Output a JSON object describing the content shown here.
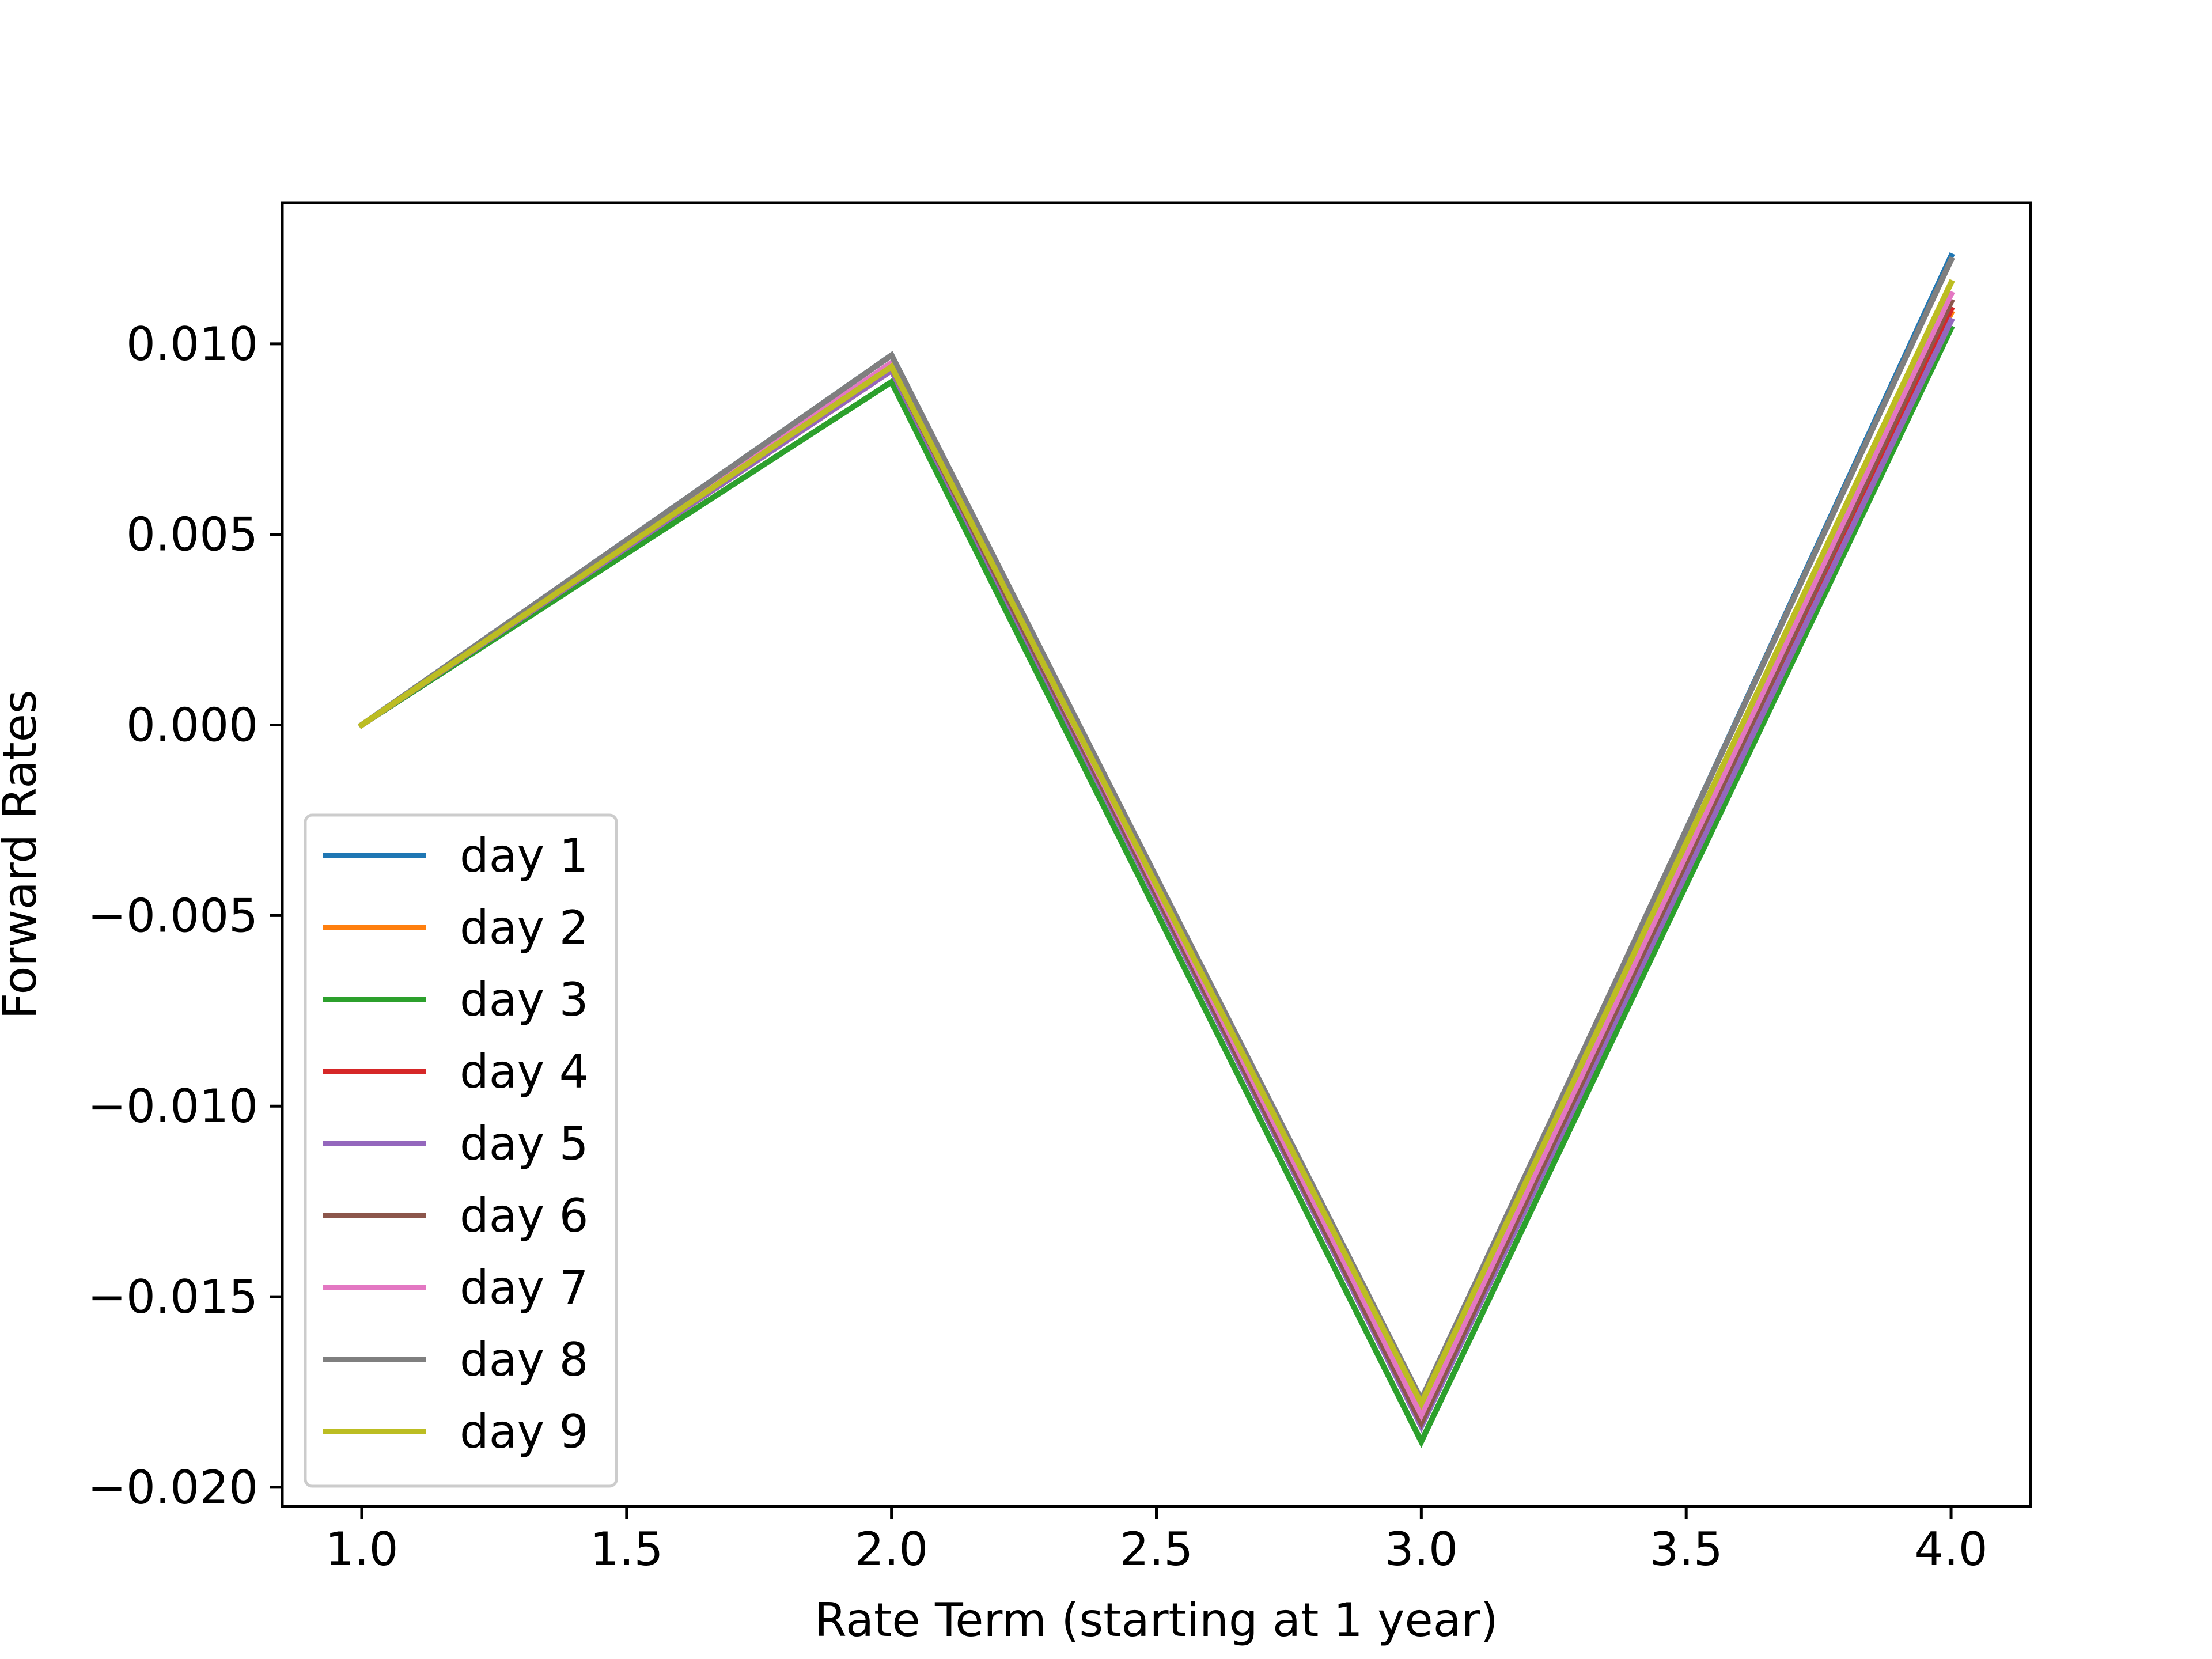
{
  "chart_data": {
    "type": "line",
    "title": "",
    "xlabel": "Rate Term (starting at 1 year)",
    "ylabel": "Forward Rates",
    "x": [
      1.0,
      2.0,
      3.0,
      4.0
    ],
    "xlim": [
      0.85,
      4.15
    ],
    "ylim": [
      -0.0205,
      0.0137
    ],
    "xticks": [
      1.0,
      1.5,
      2.0,
      2.5,
      3.0,
      3.5,
      4.0
    ],
    "xtick_labels": [
      "1.0",
      "1.5",
      "2.0",
      "2.5",
      "3.0",
      "3.5",
      "4.0"
    ],
    "yticks": [
      -0.02,
      -0.015,
      -0.01,
      -0.005,
      0.0,
      0.005,
      0.01
    ],
    "ytick_labels": [
      "−0.020",
      "−0.015",
      "−0.010",
      "−0.005",
      "0.000",
      "0.005",
      "0.010"
    ],
    "grid": false,
    "legend_position": "lower-left",
    "series": [
      {
        "name": "day 1",
        "color": "#1f77b4",
        "values": [
          0.0,
          0.0097,
          -0.0178,
          0.0123
        ]
      },
      {
        "name": "day 2",
        "color": "#ff7f0e",
        "values": [
          0.0,
          0.0093,
          -0.0183,
          0.0108
        ]
      },
      {
        "name": "day 3",
        "color": "#2ca02c",
        "values": [
          0.0,
          0.009,
          -0.0188,
          0.0104
        ]
      },
      {
        "name": "day 4",
        "color": "#d62728",
        "values": [
          0.0,
          0.0093,
          -0.0183,
          0.0109
        ]
      },
      {
        "name": "day 5",
        "color": "#9467bd",
        "values": [
          0.0,
          0.0093,
          -0.0184,
          0.0106
        ]
      },
      {
        "name": "day 6",
        "color": "#8c564b",
        "values": [
          0.0,
          0.0094,
          -0.0183,
          0.0111
        ]
      },
      {
        "name": "day 7",
        "color": "#e377c2",
        "values": [
          0.0,
          0.0095,
          -0.0181,
          0.0113
        ]
      },
      {
        "name": "day 8",
        "color": "#7f7f7f",
        "values": [
          0.0,
          0.0097,
          -0.0177,
          0.0122
        ]
      },
      {
        "name": "day 9",
        "color": "#bcbd22",
        "values": [
          0.0,
          0.0094,
          -0.0178,
          0.0116
        ]
      }
    ]
  }
}
